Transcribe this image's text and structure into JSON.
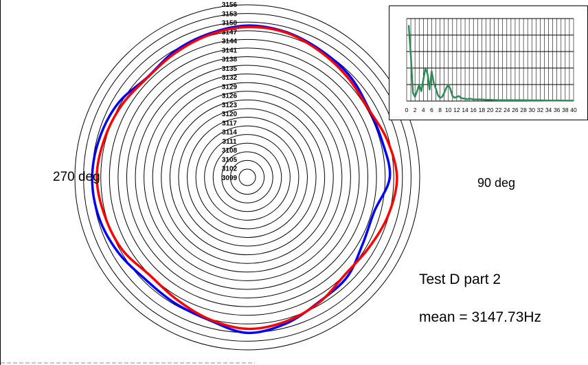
{
  "chart_data": [
    {
      "type": "polar-line",
      "title": "Test D part 2",
      "annotation": "mean = 3147.73Hz",
      "angle_labels": {
        "left": "270 deg",
        "right": "90 deg"
      },
      "radial_ticks": [
        3099,
        3102,
        3105,
        3108,
        3111,
        3114,
        3117,
        3120,
        3123,
        3126,
        3129,
        3132,
        3135,
        3138,
        3141,
        3144,
        3147,
        3150,
        3153,
        3156
      ],
      "r_range": [
        3099,
        3156
      ],
      "angle_deg": [
        0,
        15,
        30,
        45,
        60,
        75,
        90,
        105,
        120,
        135,
        150,
        165,
        180,
        195,
        210,
        225,
        240,
        255,
        270,
        285,
        300,
        315,
        330,
        345
      ],
      "series": [
        {
          "color": "#0000ff",
          "values": [
            3148.8,
            3148.3,
            3147.1,
            3146.2,
            3144.6,
            3144.6,
            3145.6,
            3141.8,
            3142.4,
            3145.1,
            3146.0,
            3148.6,
            3150.1,
            3147.4,
            3146.5,
            3146.2,
            3148.0,
            3149.5,
            3150.0,
            3149.2,
            3147.8,
            3145.2,
            3146.6,
            3147.7
          ]
        },
        {
          "color": "#ff0000",
          "values": [
            3148.3,
            3148.1,
            3146.6,
            3145.3,
            3144.4,
            3146.4,
            3148.1,
            3146.8,
            3144.9,
            3144.0,
            3146.2,
            3147.9,
            3148.7,
            3147.1,
            3145.1,
            3144.1,
            3146.3,
            3147.4,
            3148.4,
            3147.5,
            3146.4,
            3145.1,
            3146.0,
            3147.3
          ]
        }
      ]
    },
    {
      "type": "line",
      "x_ticks": [
        0,
        2,
        4,
        6,
        8,
        10,
        12,
        14,
        16,
        18,
        20,
        22,
        24,
        26,
        28,
        30,
        32,
        34,
        36,
        38,
        40
      ],
      "xlim": [
        0,
        40
      ],
      "ylim": [
        0,
        1
      ],
      "grid": true,
      "series": [
        {
          "color": "#2e8b57",
          "x": [
            0.5,
            1,
            1.5,
            2,
            2.5,
            3,
            3.5,
            4,
            4.5,
            5,
            5.5,
            6,
            6.5,
            7,
            7.5,
            8,
            8.5,
            9,
            9.5,
            10,
            10.5,
            11,
            11.5,
            12,
            12.5,
            13,
            13.5,
            14,
            14.5,
            15,
            16,
            17,
            18,
            19,
            20,
            22,
            24,
            26,
            28,
            30,
            32,
            34,
            36,
            38,
            40
          ],
          "y": [
            0.92,
            0.55,
            0.1,
            0.05,
            0.12,
            0.2,
            0.12,
            0.26,
            0.4,
            0.33,
            0.14,
            0.36,
            0.22,
            0.15,
            0.07,
            0.04,
            0.05,
            0.1,
            0.16,
            0.2,
            0.14,
            0.06,
            0.04,
            0.05,
            0.06,
            0.04,
            0.03,
            0.03,
            0.02,
            0.03,
            0.02,
            0.02,
            0.02,
            0.015,
            0.015,
            0.01,
            0.01,
            0.01,
            0.01,
            0.008,
            0.008,
            0.006,
            0.006,
            0.005,
            0.005
          ]
        }
      ]
    }
  ],
  "axis_tick_prefix": ""
}
